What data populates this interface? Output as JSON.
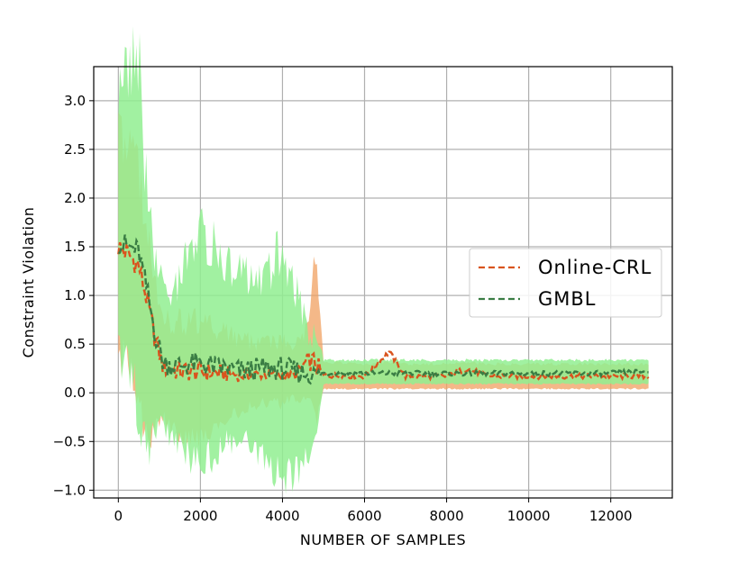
{
  "chart_data": {
    "type": "line",
    "title": "",
    "xlabel": "NUMBER OF SAMPLES",
    "ylabel": "Constraint Violation",
    "xlim": [
      -600,
      13500
    ],
    "ylim": [
      -1.08,
      3.35
    ],
    "xticks": [
      0,
      2000,
      4000,
      6000,
      8000,
      10000,
      12000
    ],
    "xtick_labels": [
      "0",
      "2000",
      "4000",
      "6000",
      "8000",
      "10000",
      "12000"
    ],
    "yticks": [
      -1.0,
      -0.5,
      0.0,
      0.5,
      1.0,
      1.5,
      2.0,
      2.5,
      3.0
    ],
    "ytick_labels": [
      "−1.0",
      "−0.5",
      "0.0",
      "0.5",
      "1.0",
      "1.5",
      "2.0",
      "2.5",
      "3.0"
    ],
    "grid": true,
    "legend_position": "center-right",
    "series": [
      {
        "name": "Online-CRL",
        "color": "#d9541e",
        "band_color": "#f0a060",
        "style": "dashed",
        "x": [
          0,
          250,
          500,
          700,
          900,
          1100,
          1500,
          2000,
          2500,
          3000,
          3500,
          4000,
          4300,
          4600,
          4800,
          5000,
          6000,
          6600,
          7000,
          8000,
          8500,
          9000,
          10000,
          11000,
          12000,
          12900
        ],
        "y": [
          1.5,
          1.42,
          1.3,
          0.95,
          0.55,
          0.25,
          0.22,
          0.22,
          0.2,
          0.18,
          0.19,
          0.18,
          0.17,
          0.33,
          0.3,
          0.18,
          0.17,
          0.42,
          0.17,
          0.17,
          0.25,
          0.17,
          0.17,
          0.17,
          0.17,
          0.17
        ],
        "lower": [
          0.6,
          0.5,
          0.2,
          -0.3,
          -0.2,
          -0.15,
          -0.3,
          -0.35,
          -0.25,
          -0.1,
          -0.05,
          -0.05,
          0.0,
          0.0,
          -0.1,
          0.05,
          0.05,
          0.05,
          0.05,
          0.05,
          0.05,
          0.05,
          0.05,
          0.05,
          0.05,
          0.05
        ],
        "upper": [
          2.4,
          2.2,
          2.0,
          1.3,
          0.9,
          0.6,
          0.6,
          0.55,
          0.5,
          0.45,
          0.42,
          0.45,
          0.4,
          0.55,
          1.15,
          0.3,
          0.28,
          0.3,
          0.28,
          0.28,
          0.3,
          0.28,
          0.28,
          0.28,
          0.28,
          0.28
        ]
      },
      {
        "name": "GMBL",
        "color": "#3a7d44",
        "band_color": "#90ee90",
        "style": "dashed",
        "x": [
          0,
          250,
          500,
          700,
          900,
          1100,
          1500,
          2000,
          2500,
          3000,
          3500,
          4000,
          4300,
          4600,
          4800,
          5000,
          6000,
          7000,
          8000,
          9000,
          10000,
          11000,
          12000,
          12900
        ],
        "y": [
          1.55,
          1.5,
          1.45,
          1.05,
          0.6,
          0.3,
          0.28,
          0.3,
          0.26,
          0.22,
          0.25,
          0.25,
          0.22,
          0.2,
          0.19,
          0.2,
          0.2,
          0.2,
          0.2,
          0.2,
          0.2,
          0.2,
          0.2,
          0.22
        ],
        "lower": [
          0.6,
          0.5,
          0.2,
          -0.35,
          -0.25,
          -0.2,
          -0.4,
          -0.5,
          -0.4,
          -0.3,
          -0.5,
          -0.6,
          -0.65,
          -0.55,
          -0.4,
          0.1,
          0.1,
          0.1,
          0.1,
          0.1,
          0.1,
          0.1,
          0.1,
          0.1
        ],
        "upper": [
          2.6,
          2.9,
          3.1,
          1.6,
          1.1,
          0.85,
          0.9,
          1.4,
          1.1,
          1.0,
          0.9,
          1.2,
          0.85,
          0.5,
          0.4,
          0.32,
          0.32,
          0.32,
          0.32,
          0.32,
          0.32,
          0.32,
          0.32,
          0.32
        ]
      }
    ]
  }
}
